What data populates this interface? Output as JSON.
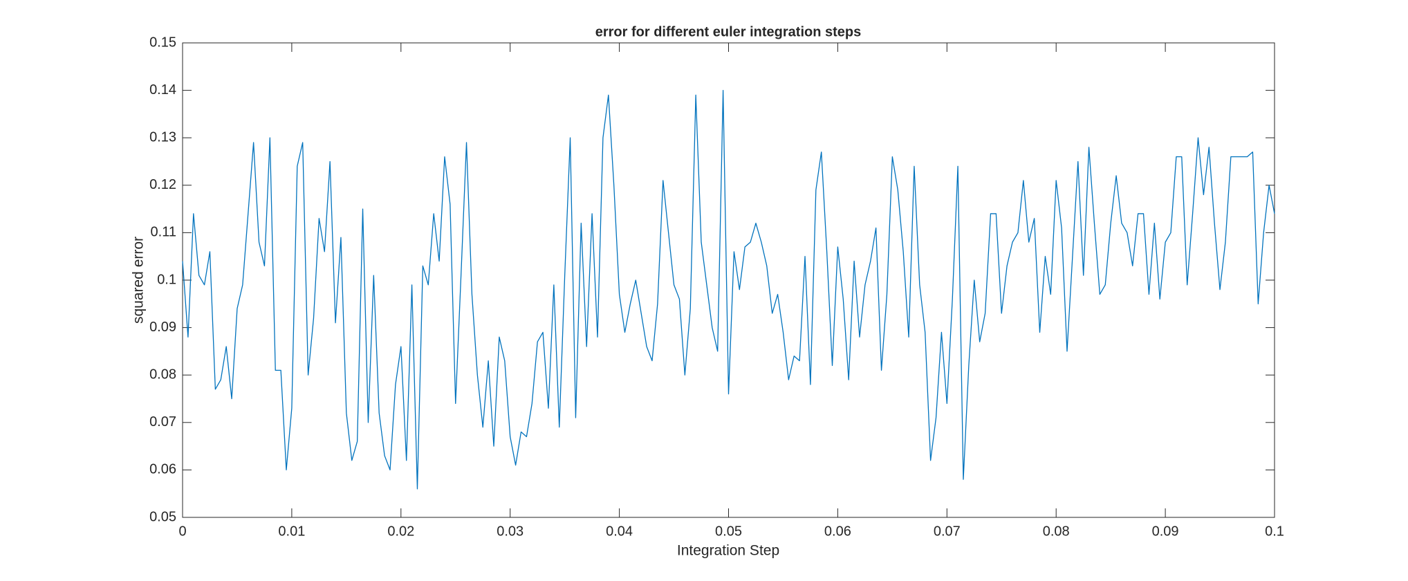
{
  "chart_data": {
    "type": "line",
    "title": "error for different euler integration steps",
    "xlabel": "Integration Step",
    "ylabel": "squared error",
    "x": [
      0,
      0.0005,
      0.001,
      0.0015,
      0.002,
      0.0025,
      0.003,
      0.0035,
      0.004,
      0.0045,
      0.005,
      0.0055,
      0.006,
      0.0065,
      0.007,
      0.0075,
      0.008,
      0.0085,
      0.009,
      0.0095,
      0.01,
      0.0105,
      0.011,
      0.0115,
      0.012,
      0.0125,
      0.013,
      0.0135,
      0.014,
      0.0145,
      0.015,
      0.0155,
      0.016,
      0.0165,
      0.017,
      0.0175,
      0.018,
      0.0185,
      0.019,
      0.0195,
      0.02,
      0.0205,
      0.021,
      0.0215,
      0.022,
      0.0225,
      0.023,
      0.0235,
      0.024,
      0.0245,
      0.025,
      0.0255,
      0.026,
      0.0265,
      0.027,
      0.0275,
      0.028,
      0.0285,
      0.029,
      0.0295,
      0.03,
      0.0305,
      0.031,
      0.0315,
      0.032,
      0.0325,
      0.033,
      0.0335,
      0.034,
      0.0345,
      0.035,
      0.0355,
      0.036,
      0.0365,
      0.037,
      0.0375,
      0.038,
      0.0385,
      0.039,
      0.0395,
      0.04,
      0.0405,
      0.041,
      0.0415,
      0.042,
      0.0425,
      0.043,
      0.0435,
      0.044,
      0.0445,
      0.045,
      0.0455,
      0.046,
      0.0465,
      0.047,
      0.0475,
      0.048,
      0.0485,
      0.049,
      0.0495,
      0.05,
      0.0505,
      0.051,
      0.0515,
      0.052,
      0.0525,
      0.053,
      0.0535,
      0.054,
      0.0545,
      0.055,
      0.0555,
      0.056,
      0.0565,
      0.057,
      0.0575,
      0.058,
      0.0585,
      0.059,
      0.0595,
      0.06,
      0.0605,
      0.061,
      0.0615,
      0.062,
      0.0625,
      0.063,
      0.0635,
      0.064,
      0.0645,
      0.065,
      0.0655,
      0.066,
      0.0665,
      0.067,
      0.0675,
      0.068,
      0.0685,
      0.069,
      0.0695,
      0.07,
      0.0705,
      0.071,
      0.0715,
      0.072,
      0.0725,
      0.073,
      0.0735,
      0.074,
      0.0745,
      0.075,
      0.0755,
      0.076,
      0.0765,
      0.077,
      0.0775,
      0.078,
      0.0785,
      0.079,
      0.0795,
      0.08,
      0.0805,
      0.081,
      0.0815,
      0.082,
      0.0825,
      0.083,
      0.0835,
      0.084,
      0.0845,
      0.085,
      0.0855,
      0.086,
      0.0865,
      0.087,
      0.0875,
      0.088,
      0.0885,
      0.089,
      0.0895,
      0.09,
      0.0905,
      0.091,
      0.0915,
      0.092,
      0.0925,
      0.093,
      0.0935,
      0.094,
      0.0945,
      0.095,
      0.0955,
      0.096,
      0.0965,
      0.097,
      0.0975,
      0.098,
      0.0985,
      0.099,
      0.0995,
      0.1
    ],
    "values": [
      0.104,
      0.088,
      0.114,
      0.101,
      0.099,
      0.106,
      0.077,
      0.079,
      0.086,
      0.075,
      0.094,
      0.099,
      0.114,
      0.129,
      0.108,
      0.103,
      0.13,
      0.081,
      0.081,
      0.06,
      0.073,
      0.124,
      0.129,
      0.08,
      0.092,
      0.113,
      0.106,
      0.125,
      0.091,
      0.109,
      0.072,
      0.062,
      0.066,
      0.115,
      0.07,
      0.101,
      0.072,
      0.063,
      0.06,
      0.078,
      0.086,
      0.062,
      0.099,
      0.056,
      0.103,
      0.099,
      0.114,
      0.104,
      0.126,
      0.116,
      0.074,
      0.101,
      0.129,
      0.097,
      0.08,
      0.069,
      0.083,
      0.065,
      0.088,
      0.083,
      0.067,
      0.061,
      0.068,
      0.067,
      0.074,
      0.087,
      0.089,
      0.073,
      0.099,
      0.069,
      0.101,
      0.13,
      0.071,
      0.112,
      0.086,
      0.114,
      0.088,
      0.13,
      0.139,
      0.12,
      0.097,
      0.089,
      0.095,
      0.1,
      0.093,
      0.086,
      0.083,
      0.095,
      0.121,
      0.11,
      0.099,
      0.096,
      0.08,
      0.094,
      0.139,
      0.108,
      0.099,
      0.09,
      0.085,
      0.14,
      0.076,
      0.106,
      0.098,
      0.107,
      0.108,
      0.112,
      0.108,
      0.103,
      0.093,
      0.097,
      0.089,
      0.079,
      0.084,
      0.083,
      0.105,
      0.078,
      0.119,
      0.127,
      0.106,
      0.082,
      0.107,
      0.096,
      0.079,
      0.104,
      0.088,
      0.099,
      0.104,
      0.111,
      0.081,
      0.097,
      0.126,
      0.119,
      0.106,
      0.088,
      0.124,
      0.099,
      0.089,
      0.062,
      0.071,
      0.089,
      0.074,
      0.096,
      0.124,
      0.058,
      0.082,
      0.1,
      0.087,
      0.093,
      0.114,
      0.114,
      0.093,
      0.103,
      0.108,
      0.11,
      0.121,
      0.108,
      0.113,
      0.089,
      0.105,
      0.097,
      0.121,
      0.111,
      0.085,
      0.105,
      0.125,
      0.101,
      0.128,
      0.112,
      0.097,
      0.099,
      0.112,
      0.122,
      0.112,
      0.11,
      0.103,
      0.114,
      0.114,
      0.097,
      0.112,
      0.096,
      0.108,
      0.11,
      0.126,
      0.126,
      0.099,
      0.114,
      0.13,
      0.118,
      0.128,
      0.112,
      0.098,
      0.108,
      0.126,
      0.126,
      0.126,
      0.126,
      0.127,
      0.095,
      0.11,
      0.12,
      0.114
    ],
    "color": "#0072bd",
    "xlim": [
      0,
      0.1
    ],
    "xticks": [
      0,
      0.01,
      0.02,
      0.03,
      0.04,
      0.05,
      0.06,
      0.07,
      0.08,
      0.09,
      0.1
    ],
    "ylim": [
      0.05,
      0.15
    ],
    "yticks": [
      0.05,
      0.06,
      0.07,
      0.08,
      0.09,
      0.1,
      0.11,
      0.12,
      0.13,
      0.14,
      0.15
    ]
  }
}
